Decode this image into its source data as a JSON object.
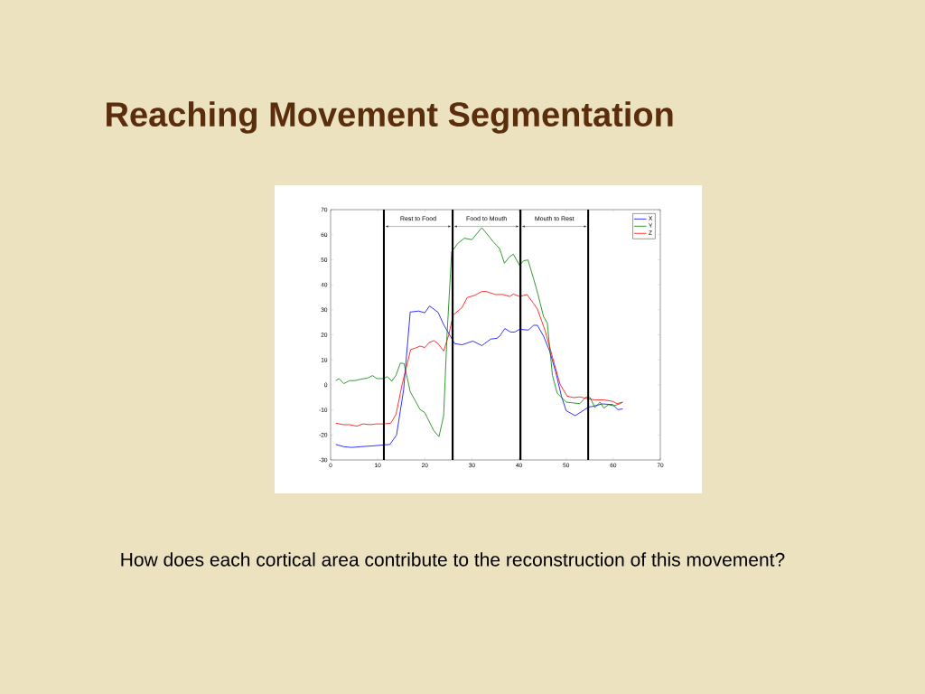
{
  "chart_data": {
    "type": "line",
    "title": "Reaching Movement Segmentation",
    "annotations": [
      "How does each cortical area contribute to the reconstruction of this movement?"
    ],
    "xlim": [
      0,
      70
    ],
    "ylim": [
      -30,
      70
    ],
    "xticks": [
      0,
      10,
      20,
      30,
      40,
      50,
      60,
      70
    ],
    "yticks": [
      -30,
      -20,
      -10,
      0,
      10,
      20,
      30,
      40,
      50,
      60,
      70
    ],
    "legend": "top right",
    "marker": "none",
    "line_style": "solid",
    "ref_lines": [
      {
        "axis": "x",
        "value": 11.3,
        "color": "#000000",
        "label": "Rest to Food"
      },
      {
        "axis": "x",
        "value": 25.9,
        "color": "#000000",
        "label": "Food to Mouth"
      },
      {
        "axis": "x",
        "value": 40.3,
        "color": "#000000",
        "label": "Mouth to Rest"
      },
      {
        "axis": "x",
        "value": 54.7,
        "color": "#000000"
      }
    ],
    "series": [
      {
        "name": "X",
        "color": "#0000ff",
        "x": [
          1.1,
          2.8,
          4.5,
          6.4,
          8.8,
          11.3,
          12.6,
          14,
          15.5,
          16.9,
          18.7,
          20,
          21,
          22.8,
          24.1,
          25.7,
          26.3,
          27.9,
          30.2,
          32.1,
          34,
          35.3,
          35.9,
          37,
          38.2,
          39.1,
          40.1,
          42,
          43.1,
          43.9,
          45.2,
          46.5,
          47.8,
          49,
          50,
          51.9,
          53.2,
          54.8,
          55.4,
          57.7,
          59.9,
          61,
          62
        ],
        "values": [
          -23.8,
          -24.7,
          -25,
          -24.7,
          -24.4,
          -24,
          -23.8,
          -20,
          -2,
          29.1,
          29.5,
          28.8,
          31.5,
          29,
          23.7,
          18.6,
          16.5,
          16,
          17.5,
          15.7,
          18.3,
          18.6,
          19.5,
          22.5,
          21.1,
          21.1,
          22.2,
          21.9,
          23.8,
          23.8,
          19.5,
          13.5,
          5.1,
          -4.5,
          -10.3,
          -12.3,
          -10.8,
          -8.8,
          -8.7,
          -7.6,
          -7.9,
          -9.9,
          -9.6
        ]
      },
      {
        "name": "Y",
        "color": "#008000",
        "x": [
          1.1,
          1.8,
          2.8,
          4,
          5.2,
          6.5,
          7.8,
          8.9,
          9.8,
          11.3,
          12,
          13,
          13.9,
          14.8,
          15.6,
          16.9,
          19,
          20,
          21.9,
          23,
          24,
          24.7,
          25.7,
          27,
          28.4,
          30,
          32.1,
          34.7,
          35.9,
          36.9,
          37.9,
          38.8,
          40.1,
          41,
          41.9,
          43,
          44,
          45.2,
          46,
          47.1,
          48.1,
          50,
          52.9,
          54.2,
          55.1,
          56.1,
          57.2,
          58,
          59,
          60.1,
          61.5,
          62
        ],
        "values": [
          1.7,
          2.5,
          0.5,
          1.7,
          1.7,
          2.3,
          2.7,
          3.7,
          2.5,
          2.5,
          3.3,
          1.5,
          3.9,
          8.7,
          8.5,
          -2.7,
          -9.9,
          -11.1,
          -18.3,
          -20.7,
          -12.3,
          19.5,
          53.2,
          56.5,
          58.6,
          58,
          62.8,
          56.8,
          54.4,
          48.6,
          51,
          52.2,
          47.8,
          49.6,
          49.9,
          43,
          36.3,
          27.3,
          24.7,
          3.7,
          -3.3,
          -6.9,
          -7.5,
          -4.9,
          -5.1,
          -9.1,
          -6.9,
          -9.3,
          -7.9,
          -8.4,
          -7.5,
          -6.9
        ]
      },
      {
        "name": "Z",
        "color": "#ff0000",
        "x": [
          1.1,
          2.7,
          4,
          5.6,
          6.8,
          8.4,
          9.7,
          11.3,
          12.8,
          13.9,
          15.2,
          17,
          18,
          19,
          20,
          20.9,
          21.9,
          22.8,
          24,
          25.1,
          26,
          27.9,
          29,
          30.5,
          32.1,
          33,
          35,
          36.6,
          38,
          38.8,
          40.1,
          41.7,
          43,
          43.9,
          45.5,
          47.1,
          48.7,
          50.2,
          51.6,
          52.9,
          54.5,
          56.1,
          58,
          59.9,
          60.8,
          62
        ],
        "values": [
          -15.3,
          -15.9,
          -15.9,
          -16.5,
          -15.6,
          -15.9,
          -15.6,
          -15.6,
          -15.3,
          -11.7,
          0.3,
          14.1,
          14.7,
          15.5,
          14.9,
          16.9,
          17.7,
          16.5,
          13.5,
          20.1,
          27.9,
          30.9,
          34.9,
          35.7,
          37.3,
          37.3,
          36.1,
          36.1,
          35.3,
          36.3,
          35.3,
          36.1,
          32.7,
          30.3,
          21.9,
          11.1,
          0.3,
          -4.5,
          -5.1,
          -4.8,
          -5.5,
          -6,
          -6,
          -6.6,
          -7.5,
          -6.9
        ]
      }
    ]
  }
}
